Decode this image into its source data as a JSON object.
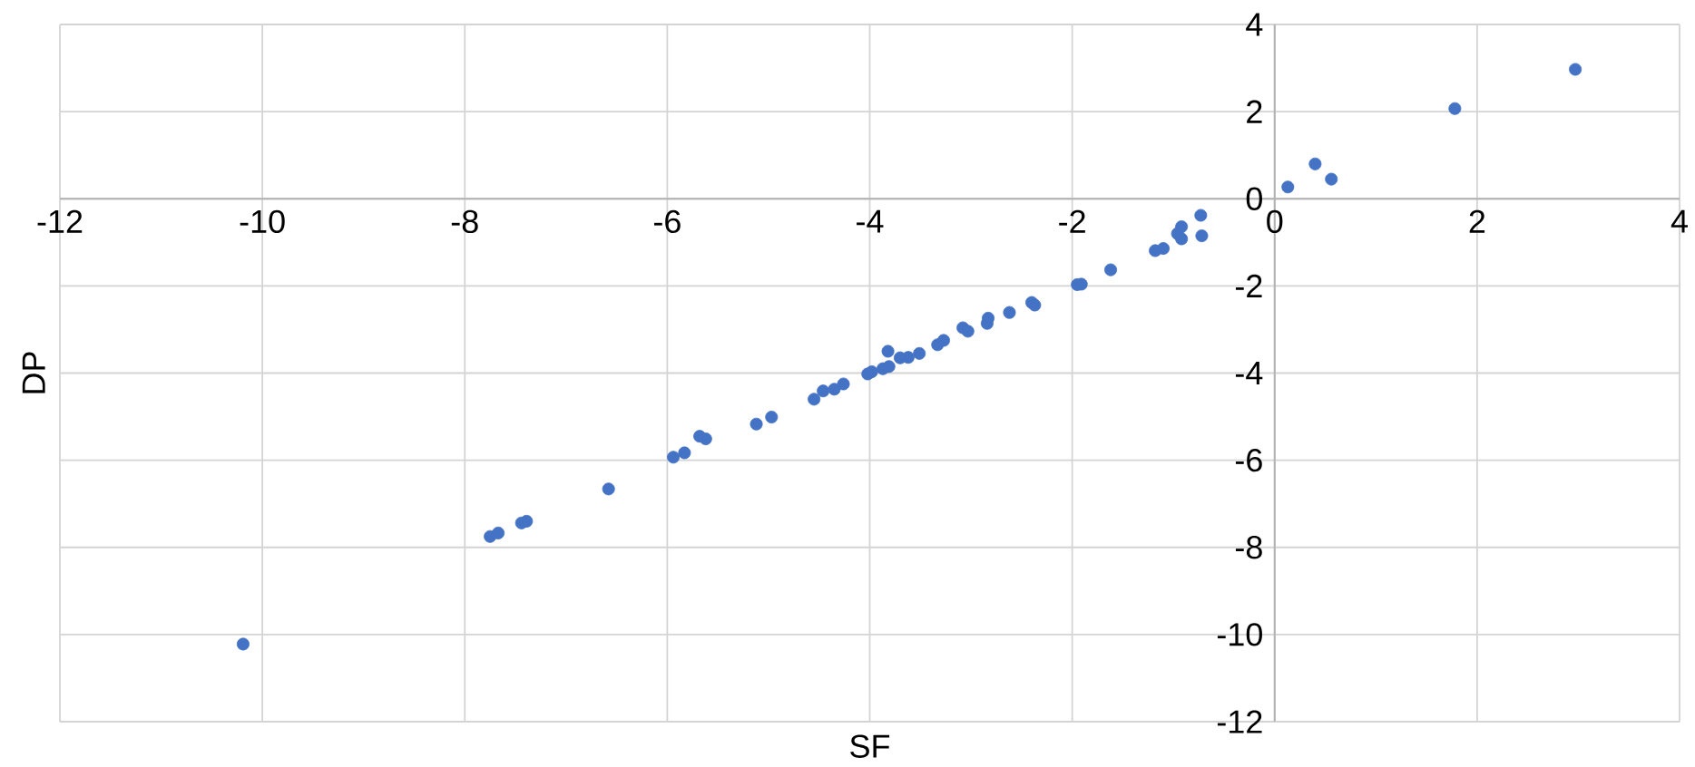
{
  "chart_data": {
    "type": "scatter",
    "xlabel": "SF",
    "ylabel": "DP",
    "color": "#4472c4",
    "grid": true,
    "x": [
      2.97,
      1.78,
      0.4,
      0.56,
      0.13,
      -0.73,
      -0.72,
      -0.92,
      -0.96,
      -0.92,
      -1.1,
      -1.18,
      -1.62,
      -1.91,
      -1.95,
      -2.4,
      -2.37,
      -2.62,
      -2.83,
      -2.84,
      -3.08,
      -3.03,
      -3.27,
      -3.33,
      -3.51,
      -3.62,
      -3.7,
      -3.82,
      -3.81,
      -3.87,
      -3.98,
      -4.02,
      -4.26,
      -4.35,
      -4.46,
      -4.55,
      -4.97,
      -5.12,
      -5.62,
      -5.68,
      -5.83,
      -5.94,
      -6.58,
      -7.39,
      -7.44,
      -7.67,
      -7.75,
      -10.19
    ],
    "values": [
      2.97,
      2.07,
      0.8,
      0.45,
      0.27,
      -0.38,
      -0.85,
      -0.64,
      -0.8,
      -0.92,
      -1.14,
      -1.19,
      -1.63,
      -1.96,
      -1.97,
      -2.38,
      -2.44,
      -2.61,
      -2.74,
      -2.86,
      -2.96,
      -3.04,
      -3.25,
      -3.35,
      -3.55,
      -3.64,
      -3.65,
      -3.5,
      -3.85,
      -3.9,
      -3.97,
      -4.02,
      -4.25,
      -4.37,
      -4.41,
      -4.6,
      -5.01,
      -5.17,
      -5.51,
      -5.45,
      -5.83,
      -5.93,
      -6.66,
      -7.4,
      -7.44,
      -7.67,
      -7.75,
      -10.22
    ],
    "xlim": [
      -12,
      4
    ],
    "ylim": [
      -12,
      4
    ],
    "xticks": [
      -12,
      -10,
      -8,
      -6,
      -4,
      -2,
      0,
      2,
      4
    ],
    "yticks": [
      -12,
      -10,
      -8,
      -6,
      -4,
      -2,
      0,
      2,
      4
    ]
  }
}
